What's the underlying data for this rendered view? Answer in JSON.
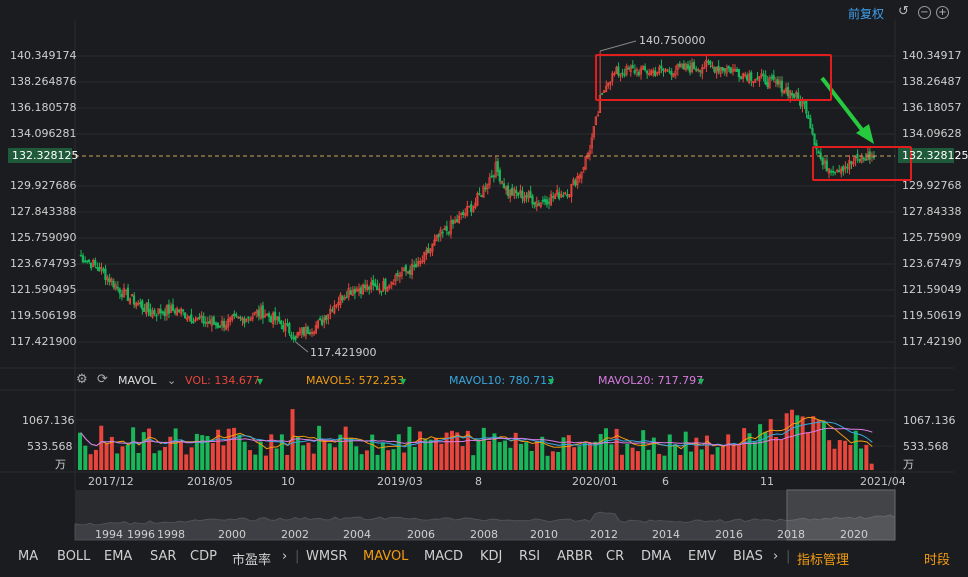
{
  "top_right": {
    "fq_label": "前复权"
  },
  "y_axis": [
    "140.349174",
    "138.264876",
    "136.180578",
    "134.096281",
    "132.328125",
    "129.927686",
    "127.843388",
    "125.759090",
    "123.674793",
    "121.590495",
    "119.506198",
    "117.421900"
  ],
  "y_axis_right": [
    "140.34917",
    "138.26487",
    "136.18057",
    "134.09628",
    "132.328125",
    "129.92768",
    "127.84338",
    "125.75909",
    "123.67479",
    "121.59049",
    "119.50619",
    "117.42190"
  ],
  "price_annotations": {
    "high": "140.750000",
    "low": "117.421900"
  },
  "indicator_bar": {
    "name": "MAVOL",
    "vol": "VOL: 134.677",
    "ma5": "MAVOL5: 572.253",
    "ma10": "MAVOL10: 780.713",
    "ma20": "MAVOL20: 717.797"
  },
  "vol_axis": {
    "top": "1067.136",
    "mid": "533.568",
    "unit": "万"
  },
  "x_axis": [
    "2017/12",
    "2018/05",
    "10",
    "2019/03",
    "8",
    "2020/01",
    "6",
    "11",
    "2021/04"
  ],
  "navigator_years": [
    "1994",
    "1996",
    "1998",
    "2000",
    "2002",
    "2004",
    "2006",
    "2008",
    "2010",
    "2012",
    "2014",
    "2016",
    "2018",
    "2020"
  ],
  "bottom_tabs": [
    "MA",
    "BOLL",
    "EMA",
    "SAR",
    "CDP",
    "市盈率",
    "WMSR",
    "MAVOL",
    "MACD",
    "KDJ",
    "RSI",
    "ARBR",
    "CR",
    "DMA",
    "EMV",
    "BIAS",
    "指标管理",
    "时段"
  ],
  "colors": {
    "up": "#e8453c",
    "down": "#19b65a",
    "ma5": "#f39c12",
    "ma10": "#36a8e0",
    "ma20": "#d77be0",
    "highlight": "#e11d1d",
    "arrow": "#27c93f"
  },
  "chart_data": {
    "type": "candlestick",
    "price_range": [
      116.5,
      141.3
    ],
    "current_price": 132.328125,
    "high": 140.75,
    "low": 117.4219,
    "close_path": [
      [
        0,
        124.4
      ],
      [
        10,
        123.3
      ],
      [
        22,
        121.3
      ],
      [
        35,
        119.8
      ],
      [
        48,
        120.0
      ],
      [
        58,
        119.2
      ],
      [
        68,
        118.8
      ],
      [
        80,
        119.3
      ],
      [
        90,
        119.8
      ],
      [
        100,
        118.8
      ],
      [
        106,
        117.9
      ],
      [
        112,
        118.4
      ],
      [
        118,
        118.9
      ],
      [
        124,
        120.3
      ],
      [
        132,
        121.6
      ],
      [
        140,
        121.8
      ],
      [
        148,
        121.8
      ],
      [
        156,
        122.8
      ],
      [
        166,
        123.5
      ],
      [
        176,
        125.8
      ],
      [
        186,
        127.3
      ],
      [
        194,
        128.6
      ],
      [
        200,
        130.3
      ],
      [
        204,
        131.4
      ],
      [
        210,
        129.4
      ],
      [
        218,
        129.2
      ],
      [
        225,
        128.6
      ],
      [
        232,
        129.1
      ],
      [
        240,
        129.6
      ],
      [
        246,
        131.2
      ],
      [
        250,
        133.0
      ],
      [
        255,
        136.4
      ],
      [
        258,
        138.3
      ],
      [
        263,
        139.0
      ],
      [
        270,
        139.2
      ],
      [
        280,
        139.1
      ],
      [
        290,
        139.2
      ],
      [
        298,
        139.4
      ],
      [
        308,
        139.6
      ],
      [
        318,
        139.3
      ],
      [
        328,
        138.8
      ],
      [
        336,
        138.4
      ],
      [
        344,
        137.9
      ],
      [
        350,
        137.2
      ],
      [
        356,
        136.2
      ],
      [
        360,
        133.6
      ],
      [
        364,
        131.6
      ],
      [
        370,
        131.3
      ],
      [
        376,
        131.6
      ],
      [
        382,
        132.1
      ],
      [
        388,
        132.328
      ]
    ],
    "volume_range": [
      0,
      1350
    ],
    "volume_ticks": [
      533.568,
      1067.136
    ],
    "last_volume": 134.677
  }
}
